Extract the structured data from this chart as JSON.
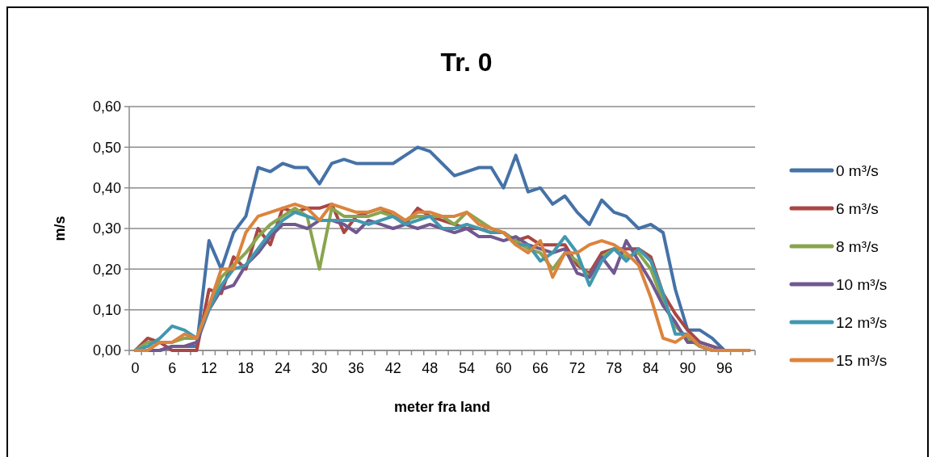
{
  "chart_data": {
    "type": "line",
    "title": "Tr. 0",
    "xlabel": "meter fra land",
    "ylabel": "m/s",
    "categories": [
      "0",
      null,
      null,
      "6",
      null,
      null,
      "12",
      null,
      null,
      "18",
      null,
      null,
      "24",
      null,
      null,
      "30",
      null,
      null,
      "36",
      null,
      null,
      "42",
      null,
      null,
      "48",
      null,
      null,
      "54",
      null,
      null,
      "60",
      null,
      null,
      "66",
      null,
      null,
      "72",
      null,
      null,
      "78",
      null,
      null,
      "84",
      null,
      null,
      "90",
      null,
      null,
      "96",
      null,
      null
    ],
    "ylim": [
      0,
      0.6
    ],
    "yticks": [
      {
        "value": 0,
        "label": "0,00"
      },
      {
        "value": 0.1,
        "label": "0,10"
      },
      {
        "value": 0.2,
        "label": "0,20"
      },
      {
        "value": 0.3,
        "label": "0,30"
      },
      {
        "value": 0.4,
        "label": "0,40"
      },
      {
        "value": 0.5,
        "label": "0,50"
      },
      {
        "value": 0.6,
        "label": "0,60"
      }
    ],
    "grid": "y",
    "legend": "right",
    "marker": "none",
    "line_style": "solid",
    "series": [
      {
        "name": "0 m³/s",
        "color": "#4572a7",
        "values": [
          0,
          0,
          0,
          0.01,
          0.01,
          0.01,
          0.27,
          0.2,
          0.29,
          0.33,
          0.45,
          0.44,
          0.46,
          0.45,
          0.45,
          0.41,
          0.46,
          0.47,
          0.46,
          0.46,
          0.46,
          0.46,
          0.48,
          0.5,
          0.49,
          0.46,
          0.43,
          0.44,
          0.45,
          0.45,
          0.4,
          0.48,
          0.39,
          0.4,
          0.36,
          0.38,
          0.34,
          0.31,
          0.37,
          0.34,
          0.33,
          0.3,
          0.31,
          0.29,
          0.15,
          0.05,
          0.05,
          0.03,
          0,
          0,
          0
        ]
      },
      {
        "name": "6 m³/s",
        "color": "#aa4643",
        "values": [
          0,
          0.03,
          0.02,
          0,
          0,
          0,
          0.15,
          0.14,
          0.23,
          0.2,
          0.3,
          0.26,
          0.35,
          0.34,
          0.35,
          0.35,
          0.36,
          0.29,
          0.33,
          0.34,
          0.35,
          0.33,
          0.31,
          0.35,
          0.33,
          0.32,
          0.31,
          0.3,
          0.3,
          0.29,
          0.29,
          0.27,
          0.28,
          0.26,
          0.26,
          0.26,
          0.21,
          0.19,
          0.24,
          0.25,
          0.25,
          0.25,
          0.23,
          0.14,
          0.09,
          0.05,
          0.02,
          0.01,
          0,
          0,
          0
        ]
      },
      {
        "name": "8 m³/s",
        "color": "#89a54e",
        "values": [
          0,
          0.02,
          0.02,
          0.02,
          0.03,
          0.03,
          0.11,
          0.18,
          0.21,
          0.24,
          0.28,
          0.31,
          0.33,
          0.35,
          0.33,
          0.2,
          0.35,
          0.33,
          0.33,
          0.33,
          0.34,
          0.33,
          0.32,
          0.33,
          0.33,
          0.33,
          0.31,
          0.34,
          0.32,
          0.3,
          0.29,
          0.27,
          0.25,
          0.24,
          0.2,
          0.24,
          0.22,
          0.18,
          0.23,
          0.25,
          0.23,
          0.24,
          0.2,
          0.12,
          0.06,
          0.03,
          0.01,
          0,
          0,
          0,
          0
        ]
      },
      {
        "name": "10 m³/s",
        "color": "#71588f",
        "values": [
          0,
          0,
          0,
          0.01,
          0.01,
          0.02,
          0.1,
          0.15,
          0.16,
          0.21,
          0.24,
          0.28,
          0.31,
          0.31,
          0.3,
          0.32,
          0.32,
          0.31,
          0.29,
          0.32,
          0.31,
          0.3,
          0.31,
          0.3,
          0.31,
          0.3,
          0.29,
          0.3,
          0.28,
          0.28,
          0.27,
          0.28,
          0.26,
          0.25,
          0.24,
          0.25,
          0.19,
          0.18,
          0.23,
          0.19,
          0.27,
          0.22,
          0.17,
          0.11,
          0.07,
          0.02,
          0.02,
          0.01,
          0,
          0,
          0
        ]
      },
      {
        "name": "12 m³/s",
        "color": "#4198af",
        "values": [
          0,
          0.01,
          0.03,
          0.06,
          0.05,
          0.03,
          0.1,
          0.16,
          0.2,
          0.21,
          0.25,
          0.29,
          0.32,
          0.34,
          0.33,
          0.32,
          0.32,
          0.32,
          0.32,
          0.31,
          0.32,
          0.33,
          0.31,
          0.32,
          0.33,
          0.3,
          0.3,
          0.31,
          0.3,
          0.29,
          0.29,
          0.26,
          0.26,
          0.22,
          0.24,
          0.28,
          0.24,
          0.16,
          0.22,
          0.25,
          0.22,
          0.25,
          0.22,
          0.14,
          0.04,
          0.04,
          0.01,
          0,
          0,
          0,
          0
        ]
      },
      {
        "name": "15 m³/s",
        "color": "#db843d",
        "values": [
          0,
          0,
          0.02,
          0.02,
          0.04,
          0.03,
          0.11,
          0.2,
          0.2,
          0.29,
          0.33,
          0.34,
          0.35,
          0.36,
          0.35,
          0.32,
          0.36,
          0.35,
          0.34,
          0.34,
          0.35,
          0.34,
          0.32,
          0.34,
          0.34,
          0.33,
          0.33,
          0.34,
          0.31,
          0.3,
          0.29,
          0.26,
          0.24,
          0.27,
          0.18,
          0.24,
          0.24,
          0.26,
          0.27,
          0.26,
          0.24,
          0.21,
          0.13,
          0.03,
          0.02,
          0.04,
          0.01,
          0,
          0,
          0,
          0
        ]
      }
    ]
  }
}
